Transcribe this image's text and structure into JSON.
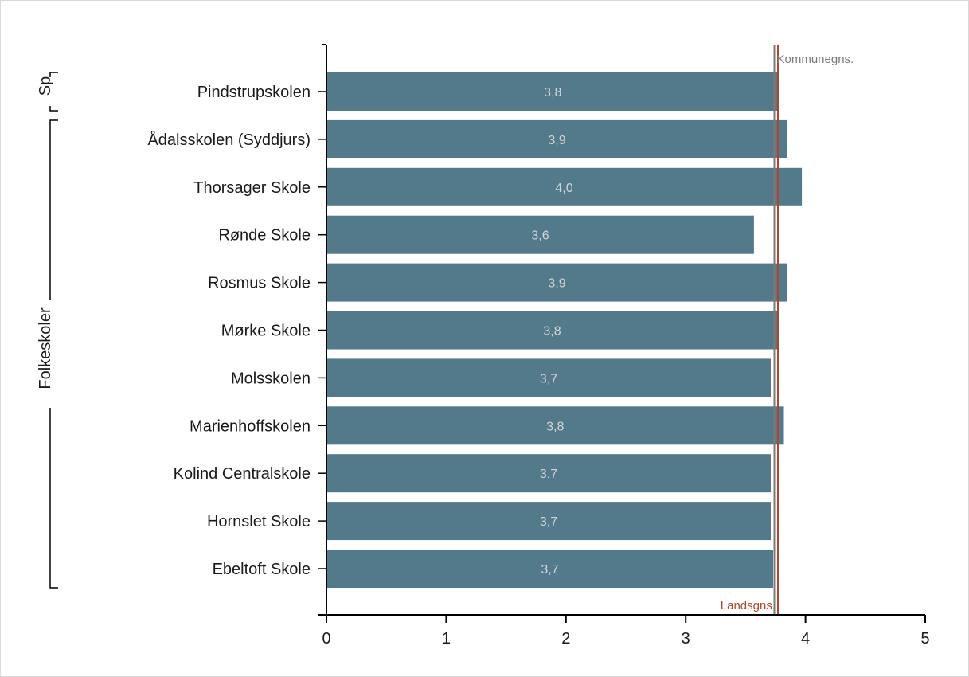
{
  "chart_data": {
    "type": "bar",
    "orientation": "horizontal",
    "categories": [
      "Pindstrupskolen",
      "Ådalsskolen (Syddjurs)",
      "Thorsager Skole",
      "Rønde Skole",
      "Rosmus Skole",
      "Mørke Skole",
      "Molsskolen",
      "Marienhoffskolen",
      "Kolind Centralskole",
      "Hornslet Skole",
      "Ebeltoft Skole"
    ],
    "values": [
      3.78,
      3.85,
      3.97,
      3.57,
      3.85,
      3.77,
      3.71,
      3.82,
      3.71,
      3.71,
      3.73
    ],
    "value_labels": [
      "3,8",
      "3,9",
      "4,0",
      "3,6",
      "3,9",
      "3,8",
      "3,7",
      "3,8",
      "3,7",
      "3,7",
      "3,7"
    ],
    "groups": [
      {
        "label": "Sp",
        "members": [
          "Pindstrupskolen"
        ]
      },
      {
        "label": "Folkeskoler",
        "members": [
          "Ådalsskolen (Syddjurs)",
          "Thorsager Skole",
          "Rønde Skole",
          "Rosmus Skole",
          "Mørke Skole",
          "Molsskolen",
          "Marienhoffskolen",
          "Kolind Centralskole",
          "Hornslet Skole",
          "Ebeltoft Skole"
        ]
      }
    ],
    "xlim": [
      0,
      5
    ],
    "xticks": [
      "0",
      "1",
      "2",
      "3",
      "4",
      "5"
    ],
    "reference_lines": [
      {
        "label": "Kommunegns.",
        "value": 3.74,
        "color": "#7a7a7a",
        "label_position": "top"
      },
      {
        "label": "Landsgns.",
        "value": 3.77,
        "color": "#b0452b",
        "label_position": "bottom"
      }
    ],
    "bar_color": "#537a8b",
    "bar_label_color": "#d4d4d4",
    "grid": false,
    "legend": "none"
  }
}
